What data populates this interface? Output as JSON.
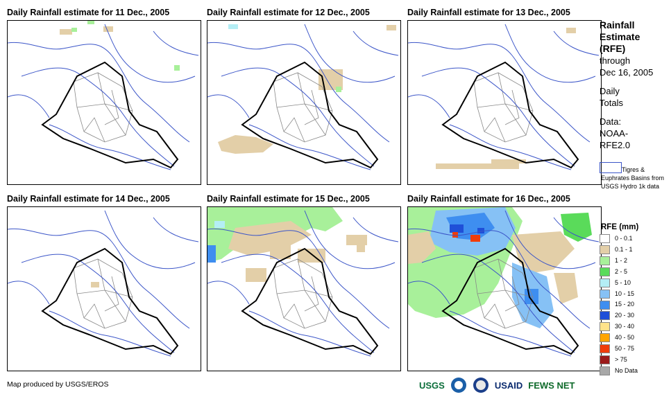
{
  "panels": [
    {
      "title": "Daily Rainfall estimate for 11 Dec., 2005"
    },
    {
      "title": "Daily Rainfall estimate for 12 Dec., 2005"
    },
    {
      "title": "Daily Rainfall estimate for 13 Dec., 2005"
    },
    {
      "title": "Daily Rainfall estimate for 14 Dec., 2005"
    },
    {
      "title": "Daily Rainfall estimate for 15 Dec., 2005"
    },
    {
      "title": "Daily Rainfall estimate for 16 Dec., 2005"
    }
  ],
  "sidebar": {
    "title_line1": "Rainfall",
    "title_line2": "Estimate",
    "title_line3": "(RFE)",
    "through": "through",
    "date": "Dec 16, 2005",
    "daily": "Daily",
    "totals": "Totals",
    "data_label": "Data:",
    "data_src1": "NOAA-",
    "data_src2": "RFE2.0",
    "basin_text": "Tigres & Euphrates Basins from USGS Hydro 1k data"
  },
  "legend": {
    "title": "RFE (mm)",
    "items": [
      {
        "label": "0 - 0.1",
        "color": "#ffffff"
      },
      {
        "label": "0.1 - 1",
        "color": "#e3cfa8"
      },
      {
        "label": "1 - 2",
        "color": "#a8f09a"
      },
      {
        "label": "2 - 5",
        "color": "#5adb5a"
      },
      {
        "label": "5 - 10",
        "color": "#b4eef5"
      },
      {
        "label": "10 - 15",
        "color": "#86c1f5"
      },
      {
        "label": "15 - 20",
        "color": "#3e8ef0"
      },
      {
        "label": "20 - 30",
        "color": "#1f4fd8"
      },
      {
        "label": "30 - 40",
        "color": "#ffe38a"
      },
      {
        "label": "40 - 50",
        "color": "#ffa500"
      },
      {
        "label": "50 - 75",
        "color": "#f03c0a"
      },
      {
        "label": "> 75",
        "color": "#9b1a1a"
      },
      {
        "label": "No Data",
        "color": "#a8a8a8"
      }
    ]
  },
  "footer": {
    "credit": "Map produced by USGS/EROS"
  },
  "logos": [
    {
      "text": "USGS",
      "color": "#0b6e3a",
      "icon": "usgs-logo"
    },
    {
      "text": "",
      "color": "#1b5fa8",
      "icon": "noaa-logo"
    },
    {
      "text": "",
      "color": "#1b3f8a",
      "icon": "dhs-seal"
    },
    {
      "text": "USAID",
      "color": "#0a2a6e",
      "icon": "usaid-logo"
    },
    {
      "text": "FEWS NET",
      "color": "#0e6a2a",
      "icon": "fewsnet-logo"
    }
  ],
  "colors": {
    "border": "#000000",
    "admin": "#888888",
    "rivers": "#3b55c8"
  }
}
